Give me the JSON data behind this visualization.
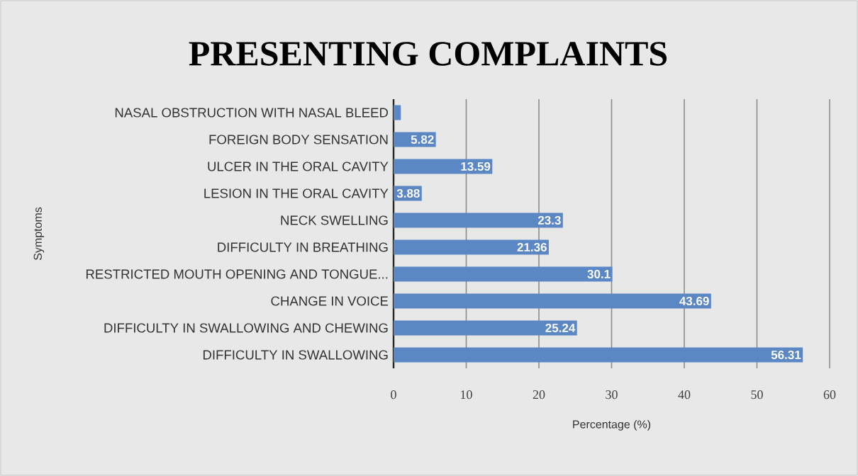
{
  "chart_data": {
    "type": "bar",
    "orientation": "horizontal",
    "title": "PRESENTING COMPLAINTS",
    "xlabel": "Percentage (%)",
    "ylabel": "Symptoms",
    "categories": [
      "NASAL OBSTRUCTION WITH NASAL BLEED",
      "FOREIGN BODY SENSATION",
      "ULCER IN THE ORAL CAVITY",
      "LESION IN THE ORAL CAVITY",
      "NECK SWELLING",
      "DIFFICULTY IN BREATHING",
      "RESTRICTED MOUTH OPENING AND TONGUE...",
      "CHANGE IN VOICE",
      "DIFFICULTY IN SWALLOWING AND CHEWING",
      "DIFFICULTY IN SWALLOWING"
    ],
    "values": [
      1,
      5.82,
      13.59,
      3.88,
      23.3,
      21.36,
      30.1,
      43.69,
      25.24,
      56.31
    ],
    "value_labels": [
      null,
      "5.82",
      "13.59",
      "3.88",
      "23.3",
      "21.36",
      "30.1",
      "43.69",
      "25.24",
      "56.31"
    ],
    "color": "#5b87c5",
    "xlim": [
      0,
      60
    ],
    "xticks": [
      0,
      10,
      20,
      30,
      40,
      50,
      60
    ],
    "grid": "x"
  }
}
